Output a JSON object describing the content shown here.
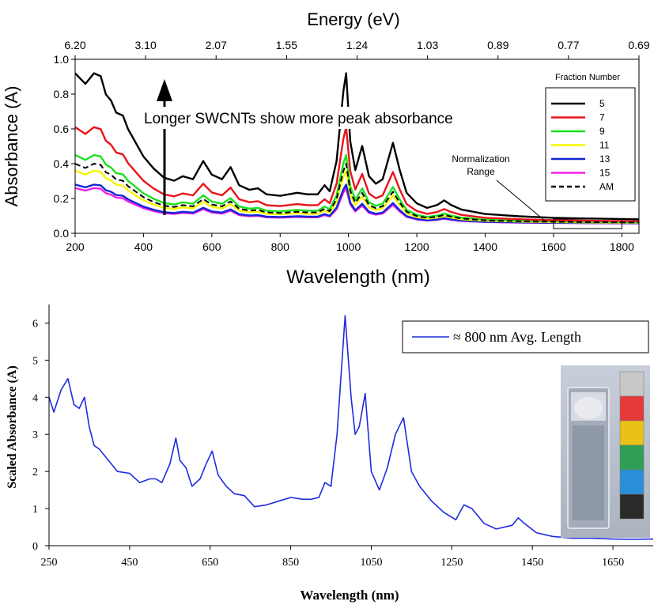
{
  "chart_data": [
    {
      "type": "line",
      "title": "",
      "xlabel": "Wavelength (nm)",
      "ylabel": "Absorbance (A)",
      "top_axis_label": "Energy (eV)",
      "xlim": [
        200,
        1850
      ],
      "ylim": [
        0.0,
        1.0
      ],
      "xticks": [
        200,
        400,
        600,
        800,
        1000,
        1200,
        1400,
        1600,
        1800
      ],
      "yticks": [
        "0.0",
        "0.2",
        "0.4",
        "0.6",
        "0.8",
        "1.0"
      ],
      "top_ticks": [
        "6.20",
        "3.10",
        "2.07",
        "1.55",
        "1.24",
        "1.03",
        "0.89",
        "0.77",
        "0.69"
      ],
      "grid": false,
      "legend": {
        "title": "Fraction Number",
        "placement": "top-right",
        "entries": [
          "5",
          "7",
          "9",
          "11",
          "13",
          "15",
          "AM"
        ]
      },
      "annotations": {
        "arrow_text": "Longer SWCNTs show more peak absorbance",
        "normalization_line1": "Normalization",
        "normalization_line2": "Range",
        "normalization_range": [
          1600,
          1800
        ]
      },
      "profile_x": [
        200,
        230,
        255,
        275,
        290,
        305,
        320,
        340,
        355,
        370,
        400,
        430,
        460,
        490,
        515,
        545,
        575,
        600,
        630,
        655,
        680,
        710,
        735,
        760,
        800,
        850,
        880,
        910,
        930,
        945,
        965,
        985,
        993,
        1005,
        1020,
        1040,
        1060,
        1080,
        1100,
        1130,
        1150,
        1170,
        1200,
        1230,
        1260,
        1280,
        1300,
        1330,
        1400,
        1500,
        1600,
        1700,
        1850
      ],
      "profile_y": [
        1.0,
        0.93,
        1.0,
        0.98,
        0.86,
        0.82,
        0.74,
        0.72,
        0.63,
        0.57,
        0.45,
        0.37,
        0.31,
        0.29,
        0.32,
        0.3,
        0.42,
        0.33,
        0.3,
        0.38,
        0.26,
        0.23,
        0.24,
        0.2,
        0.19,
        0.21,
        0.2,
        0.2,
        0.26,
        0.22,
        0.42,
        0.88,
        1.0,
        0.55,
        0.36,
        0.52,
        0.32,
        0.27,
        0.3,
        0.54,
        0.36,
        0.21,
        0.14,
        0.11,
        0.13,
        0.16,
        0.13,
        0.1,
        0.07,
        0.055,
        0.045,
        0.04,
        0.035
      ],
      "series": [
        {
          "name": "5",
          "color": "#000000",
          "dash": false,
          "floor": 0.05,
          "scale": 0.87
        },
        {
          "name": "7",
          "color": "#e8141b",
          "dash": false,
          "floor": 0.05,
          "scale": 0.56
        },
        {
          "name": "9",
          "color": "#1fe01f",
          "dash": false,
          "floor": 0.05,
          "scale": 0.4
        },
        {
          "name": "11",
          "color": "#f6f600",
          "dash": false,
          "floor": 0.05,
          "scale": 0.31
        },
        {
          "name": "13",
          "color": "#1426d6",
          "dash": false,
          "floor": 0.05,
          "scale": 0.23
        },
        {
          "name": "15",
          "color": "#f020e8",
          "dash": false,
          "floor": 0.05,
          "scale": 0.21
        },
        {
          "name": "AM",
          "color": "#000000",
          "dash": true,
          "floor": 0.05,
          "scale": 0.35
        }
      ]
    },
    {
      "type": "line",
      "title": "",
      "xlabel": "Wavelength (nm)",
      "ylabel": "Scaled Absorbance (A)",
      "xlim": [
        250,
        1750
      ],
      "ylim": [
        0,
        6.5
      ],
      "xticks": [
        250,
        450,
        650,
        850,
        1050,
        1250,
        1450,
        1650
      ],
      "yticks": [
        0,
        1,
        2,
        3,
        4,
        5,
        6
      ],
      "grid": false,
      "legend": {
        "placement": "top-right"
      },
      "series": [
        {
          "name": "≈ 800 nm Avg. Length",
          "color": "#1f2bde",
          "x": [
            250,
            262,
            280,
            297,
            312,
            325,
            338,
            350,
            362,
            375,
            390,
            420,
            450,
            475,
            500,
            515,
            530,
            550,
            565,
            575,
            590,
            605,
            625,
            640,
            655,
            670,
            690,
            710,
            735,
            760,
            790,
            820,
            850,
            880,
            900,
            920,
            935,
            950,
            965,
            985,
            1000,
            1010,
            1020,
            1035,
            1050,
            1070,
            1090,
            1110,
            1130,
            1150,
            1170,
            1200,
            1230,
            1260,
            1280,
            1300,
            1330,
            1360,
            1400,
            1415,
            1430,
            1460,
            1500,
            1550,
            1600,
            1650,
            1700,
            1750
          ],
          "y": [
            4.0,
            3.6,
            4.2,
            4.5,
            3.8,
            3.7,
            4.0,
            3.2,
            2.7,
            2.6,
            2.4,
            2.0,
            1.95,
            1.7,
            1.8,
            1.8,
            1.7,
            2.2,
            2.9,
            2.3,
            2.1,
            1.6,
            1.8,
            2.2,
            2.55,
            1.9,
            1.6,
            1.4,
            1.35,
            1.05,
            1.1,
            1.2,
            1.3,
            1.25,
            1.25,
            1.3,
            1.7,
            1.6,
            3.0,
            6.2,
            4.0,
            3.0,
            3.2,
            4.1,
            2.0,
            1.5,
            2.1,
            3.0,
            3.45,
            2.0,
            1.6,
            1.2,
            0.9,
            0.7,
            1.1,
            1.0,
            0.6,
            0.45,
            0.55,
            0.75,
            0.6,
            0.35,
            0.25,
            0.2,
            0.2,
            0.18,
            0.17,
            0.18
          ]
        }
      ],
      "inset_photo": {
        "description_swatches": [
          "#c8c8c8",
          "#e53a3a",
          "#e8c218",
          "#2f9f55",
          "#2a8fd8",
          "#2a2a2a"
        ]
      }
    }
  ]
}
